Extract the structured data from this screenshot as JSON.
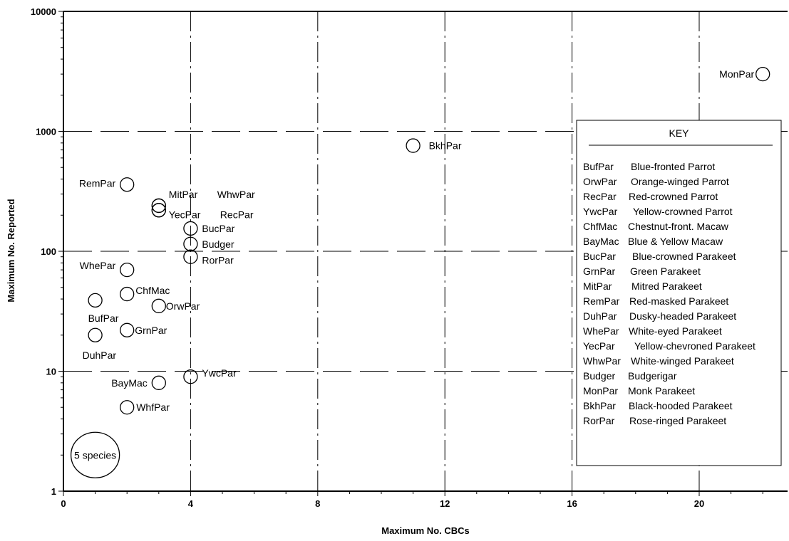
{
  "chart_data": {
    "type": "scatter",
    "xlabel": "Maximum No. CBCs",
    "ylabel": "Maximum No. Reported",
    "xlim": [
      0,
      22.5
    ],
    "ylim": [
      1,
      10000
    ],
    "y_scale": "log",
    "x_ticks": [
      0,
      4,
      8,
      12,
      16,
      20
    ],
    "y_ticks": [
      1,
      10,
      100,
      1000,
      10000
    ],
    "grid": "dashed",
    "points": [
      {
        "code": "MonPar",
        "x": 22,
        "y": 3000
      },
      {
        "code": "BkhPar",
        "x": 11,
        "y": 760
      },
      {
        "code": "RemPar",
        "x": 2,
        "y": 360
      },
      {
        "code": "MitPar",
        "x": 3,
        "y": 240
      },
      {
        "code": "WhwPar",
        "x": 3,
        "y": 240
      },
      {
        "code": "YecPar",
        "x": 3,
        "y": 220
      },
      {
        "code": "RecPar",
        "x": 3,
        "y": 220
      },
      {
        "code": "BucPar",
        "x": 4,
        "y": 155
      },
      {
        "code": "Budger",
        "x": 4,
        "y": 115
      },
      {
        "code": "RorPar",
        "x": 4,
        "y": 90
      },
      {
        "code": "WhePar",
        "x": 2,
        "y": 70
      },
      {
        "code": "ChfMac",
        "x": 2,
        "y": 44
      },
      {
        "code": "BufPar",
        "x": 1,
        "y": 39
      },
      {
        "code": "OrwPar",
        "x": 3,
        "y": 35
      },
      {
        "code": "GrnPar",
        "x": 2,
        "y": 22
      },
      {
        "code": "DuhPar",
        "x": 1,
        "y": 20
      },
      {
        "code": "YwcPar",
        "x": 4,
        "y": 9
      },
      {
        "code": "BayMac",
        "x": 3,
        "y": 8
      },
      {
        "code": "WhfPar",
        "x": 2,
        "y": 5
      }
    ],
    "size_legend": {
      "label": "5 species",
      "x": 1,
      "y": 2
    },
    "key": {
      "title": "KEY",
      "entries": [
        {
          "code": "BufPar",
          "name": "Blue-fronted Parrot"
        },
        {
          "code": "OrwPar",
          "name": "Orange-winged Parrot"
        },
        {
          "code": "RecPar",
          "name": "Red-crowned Parrot"
        },
        {
          "code": "YwcPar",
          "name": "Yellow-crowned Parrot"
        },
        {
          "code": "ChfMac",
          "name": "Chestnut-front. Macaw"
        },
        {
          "code": "BayMac",
          "name": "Blue & Yellow Macaw"
        },
        {
          "code": "BucPar",
          "name": "Blue-crowned Parakeet"
        },
        {
          "code": "GrnPar",
          "name": "Green Parakeet"
        },
        {
          "code": "MitPar",
          "name": "Mitred Parakeet"
        },
        {
          "code": "RemPar",
          "name": "Red-masked Parakeet"
        },
        {
          "code": "DuhPar",
          "name": "Dusky-headed Parakeet"
        },
        {
          "code": "WhePar",
          "name": "White-eyed Parakeet"
        },
        {
          "code": "YecPar",
          "name": "Yellow-chevroned Parakeet"
        },
        {
          "code": "WhwPar",
          "name": "White-winged Parakeet"
        },
        {
          "code": "Budger",
          "name": "Budgerigar"
        },
        {
          "code": "MonPar",
          "name": "Monk Parakeet"
        },
        {
          "code": "BkhPar",
          "name": "Black-hooded Parakeet"
        },
        {
          "code": "RorPar",
          "name": "Rose-ringed Parakeet"
        }
      ]
    }
  }
}
